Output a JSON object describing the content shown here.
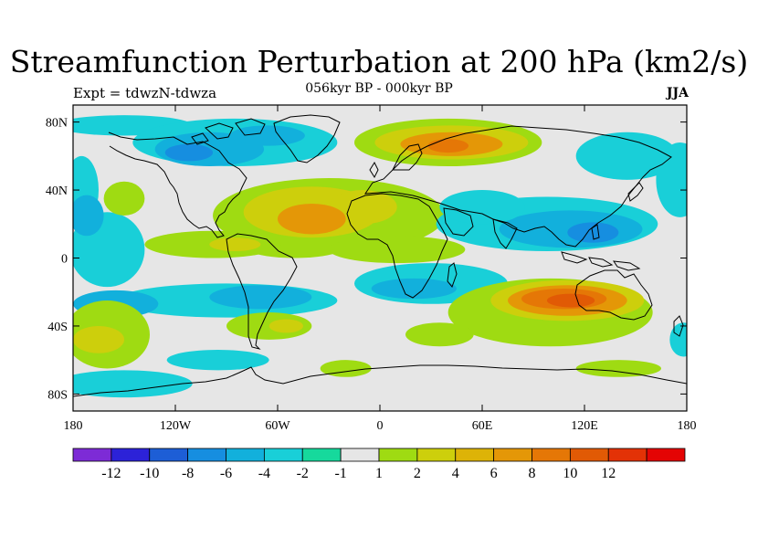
{
  "title": "Streamfunction Perturbation at 200 hPa (km2/s)",
  "experiment": "Expt = tdwzN-tdwza",
  "period": "056kyr BP - 000kyr BP",
  "season": "JJA",
  "map": {
    "projection": "cylindrical-equidistant",
    "lon_range": [
      -180,
      180
    ],
    "lat_range": [
      -90,
      90
    ],
    "background_color": "#e6e6e6",
    "coastline_color": "#000000"
  },
  "axes": {
    "x_ticks": [
      {
        "lon": -180,
        "label": "180"
      },
      {
        "lon": -120,
        "label": "120W"
      },
      {
        "lon": -60,
        "label": "60W"
      },
      {
        "lon": 0,
        "label": "0"
      },
      {
        "lon": 60,
        "label": "60E"
      },
      {
        "lon": 120,
        "label": "120E"
      },
      {
        "lon": 180,
        "label": "180"
      }
    ],
    "y_ticks": [
      {
        "lat": 80,
        "label": "80N"
      },
      {
        "lat": 40,
        "label": "40N"
      },
      {
        "lat": 0,
        "label": "0"
      },
      {
        "lat": -40,
        "label": "40S"
      },
      {
        "lat": -80,
        "label": "80S"
      }
    ]
  },
  "colorbar": {
    "colors": [
      "#7d2bd6",
      "#2c22d8",
      "#1d5ed6",
      "#168ee0",
      "#12b0dc",
      "#19cfd8",
      "#16d99c",
      "#e6e6e6",
      "#9fdb12",
      "#cdcf0c",
      "#ddb307",
      "#e49707",
      "#e57706",
      "#e15a05",
      "#e33206",
      "#e40404"
    ],
    "labels": [
      "-12",
      "-10",
      "-8",
      "-6",
      "-4",
      "-2",
      "-1",
      "1",
      "2",
      "4",
      "6",
      "8",
      "10",
      "12"
    ]
  },
  "anomalies": [
    {
      "lon": -150,
      "lat": 78,
      "rx": 40,
      "ry": 6,
      "level": -2
    },
    {
      "lon": -85,
      "lat": 68,
      "rx": 60,
      "ry": 14,
      "level": -2
    },
    {
      "lon": -100,
      "lat": 64,
      "rx": 32,
      "ry": 10,
      "level": -4
    },
    {
      "lon": -112,
      "lat": 62,
      "rx": 14,
      "ry": 5,
      "level": -6
    },
    {
      "lon": -66,
      "lat": 72,
      "rx": 22,
      "ry": 6,
      "level": -4
    },
    {
      "lon": 40,
      "lat": 68,
      "rx": 55,
      "ry": 14,
      "level": 2
    },
    {
      "lon": 42,
      "lat": 68,
      "rx": 45,
      "ry": 10,
      "level": 4
    },
    {
      "lon": 42,
      "lat": 67,
      "rx": 30,
      "ry": 7,
      "level": 6
    },
    {
      "lon": 40,
      "lat": 66,
      "rx": 12,
      "ry": 4,
      "level": 8
    },
    {
      "lon": 145,
      "lat": 60,
      "rx": 30,
      "ry": 14,
      "level": -2
    },
    {
      "lon": 176,
      "lat": 46,
      "rx": 14,
      "ry": 22,
      "level": -2
    },
    {
      "lon": -175,
      "lat": 40,
      "rx": 10,
      "ry": 20,
      "level": -2
    },
    {
      "lon": -160,
      "lat": 5,
      "rx": 22,
      "ry": 22,
      "level": -2
    },
    {
      "lon": -172,
      "lat": 25,
      "rx": 10,
      "ry": 12,
      "level": -4
    },
    {
      "lon": -150,
      "lat": 35,
      "rx": 12,
      "ry": 10,
      "level": 2
    },
    {
      "lon": -30,
      "lat": 25,
      "rx": 68,
      "ry": 22,
      "level": 2
    },
    {
      "lon": -50,
      "lat": 10,
      "rx": 35,
      "ry": 10,
      "level": 2
    },
    {
      "lon": -40,
      "lat": 27,
      "rx": 40,
      "ry": 15,
      "level": 4
    },
    {
      "lon": -10,
      "lat": 30,
      "rx": 20,
      "ry": 10,
      "level": 4
    },
    {
      "lon": -40,
      "lat": 23,
      "rx": 20,
      "ry": 9,
      "level": 6
    },
    {
      "lon": -98,
      "lat": 8,
      "rx": 40,
      "ry": 8,
      "level": 2
    },
    {
      "lon": -85,
      "lat": 8,
      "rx": 15,
      "ry": 4,
      "level": 4
    },
    {
      "lon": 10,
      "lat": 5,
      "rx": 40,
      "ry": 8,
      "level": 2
    },
    {
      "lon": 98,
      "lat": 20,
      "rx": 65,
      "ry": 16,
      "level": -2
    },
    {
      "lon": 112,
      "lat": 17,
      "rx": 42,
      "ry": 11,
      "level": -4
    },
    {
      "lon": 125,
      "lat": 15,
      "rx": 15,
      "ry": 6,
      "level": -6
    },
    {
      "lon": 60,
      "lat": 30,
      "rx": 25,
      "ry": 10,
      "level": -2
    },
    {
      "lon": -90,
      "lat": -25,
      "rx": 65,
      "ry": 10,
      "level": -2
    },
    {
      "lon": -70,
      "lat": -23,
      "rx": 30,
      "ry": 7,
      "level": -4
    },
    {
      "lon": -155,
      "lat": -27,
      "rx": 25,
      "ry": 8,
      "level": -4
    },
    {
      "lon": 30,
      "lat": -15,
      "rx": 45,
      "ry": 12,
      "level": -2
    },
    {
      "lon": 20,
      "lat": -18,
      "rx": 25,
      "ry": 6,
      "level": -4
    },
    {
      "lon": 100,
      "lat": -32,
      "rx": 60,
      "ry": 20,
      "level": 2
    },
    {
      "lon": 110,
      "lat": -25,
      "rx": 45,
      "ry": 12,
      "level": 4
    },
    {
      "lon": 110,
      "lat": -25,
      "rx": 35,
      "ry": 9,
      "level": 6
    },
    {
      "lon": 108,
      "lat": -24,
      "rx": 25,
      "ry": 6,
      "level": 8
    },
    {
      "lon": 112,
      "lat": -25,
      "rx": 14,
      "ry": 4,
      "level": 10
    },
    {
      "lon": -160,
      "lat": -45,
      "rx": 25,
      "ry": 20,
      "level": 2
    },
    {
      "lon": -165,
      "lat": -48,
      "rx": 15,
      "ry": 8,
      "level": 4
    },
    {
      "lon": -65,
      "lat": -40,
      "rx": 25,
      "ry": 8,
      "level": 2
    },
    {
      "lon": -55,
      "lat": -40,
      "rx": 10,
      "ry": 4,
      "level": 4
    },
    {
      "lon": 35,
      "lat": -45,
      "rx": 20,
      "ry": 7,
      "level": 2
    },
    {
      "lon": -20,
      "lat": -65,
      "rx": 15,
      "ry": 5,
      "level": 2
    },
    {
      "lon": 140,
      "lat": -65,
      "rx": 25,
      "ry": 5,
      "level": 2
    },
    {
      "lon": 178,
      "lat": -48,
      "rx": 8,
      "ry": 10,
      "level": -2
    },
    {
      "lon": -150,
      "lat": -74,
      "rx": 40,
      "ry": 8,
      "level": -2
    },
    {
      "lon": -95,
      "lat": -60,
      "rx": 30,
      "ry": 6,
      "level": -2
    }
  ]
}
